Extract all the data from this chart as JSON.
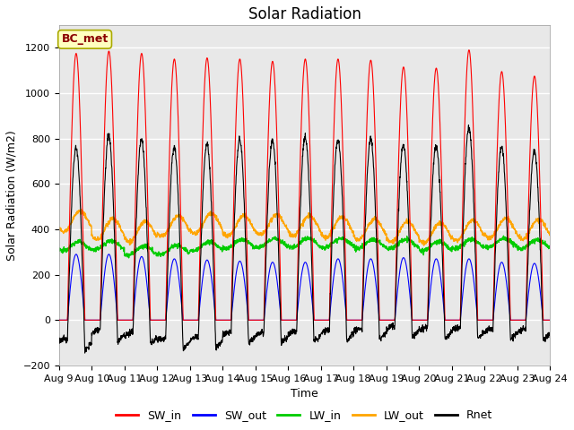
{
  "title": "Solar Radiation",
  "ylabel": "Solar Radiation (W/m2)",
  "xlabel": "Time",
  "ylim": [
    -200,
    1300
  ],
  "yticks": [
    -200,
    0,
    200,
    400,
    600,
    800,
    1000,
    1200
  ],
  "num_days": 15,
  "xtick_labels": [
    "Aug 9",
    "Aug 10",
    "Aug 11",
    "Aug 12",
    "Aug 13",
    "Aug 14",
    "Aug 15",
    "Aug 16",
    "Aug 17",
    "Aug 18",
    "Aug 19",
    "Aug 20",
    "Aug 21",
    "Aug 22",
    "Aug 23",
    "Aug 24"
  ],
  "annotation_text": "BC_met",
  "annotation_color": "#8B0000",
  "annotation_bg": "#FFFFC0",
  "annotation_border": "#AAAA00",
  "colors": {
    "SW_in": "#FF0000",
    "SW_out": "#0000FF",
    "LW_in": "#00CC00",
    "LW_out": "#FFA500",
    "Rnet": "#000000"
  },
  "SW_in_peaks": [
    1175,
    1185,
    1175,
    1150,
    1155,
    1150,
    1140,
    1150,
    1150,
    1145,
    1115,
    1110,
    1190,
    1095,
    1075
  ],
  "SW_out_peaks": [
    290,
    290,
    280,
    270,
    265,
    260,
    255,
    255,
    270,
    270,
    275,
    270,
    270,
    255,
    250
  ],
  "LW_in_bases": [
    325,
    330,
    305,
    310,
    325,
    335,
    340,
    340,
    340,
    335,
    335,
    325,
    335,
    340,
    335
  ],
  "LW_out_bases": [
    435,
    400,
    390,
    415,
    425,
    415,
    420,
    415,
    410,
    400,
    390,
    385,
    395,
    405,
    400
  ],
  "night_rnet": -100,
  "day_start": 0.26,
  "day_end": 0.79,
  "SW_peak_time": 0.52,
  "background_color": "#FFFFFF",
  "plot_bg": "#E8E8E8",
  "grid_color": "#FFFFFF",
  "title_fontsize": 12,
  "axis_fontsize": 9,
  "tick_fontsize": 8
}
